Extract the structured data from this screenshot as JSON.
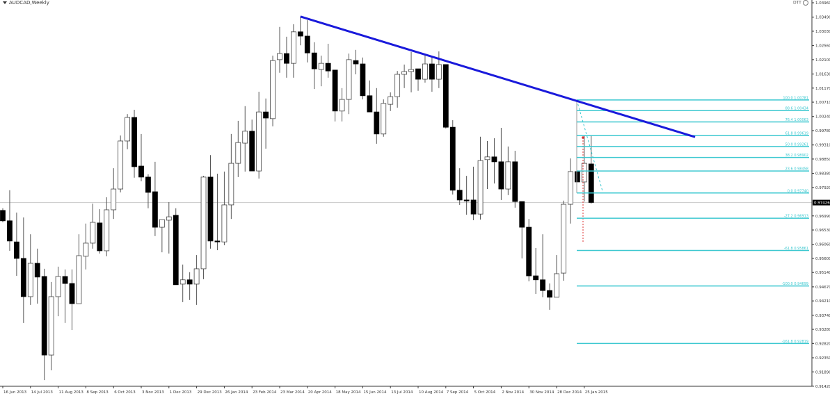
{
  "header": {
    "symbol_title": "AUDCAD,Weekly",
    "indicator_label": "DTT"
  },
  "colors": {
    "bull_body": "#ffffff",
    "bear_body": "#000000",
    "wick": "#555555",
    "trendline": "#1a1adb",
    "fibonacci": "#3cc8d0",
    "price_line": "#c8c8c8"
  },
  "chart_data": {
    "type": "candlestick",
    "title": "AUDCAD,Weekly",
    "timeframe": "Weekly",
    "ylim": [
      0.9142,
      1.0396
    ],
    "grid": false,
    "current_price": "0.97426",
    "y_ticks": [
      "1.03960",
      "1.03490",
      "1.03030",
      "1.02560",
      "1.02100",
      "1.01630",
      "1.01170",
      "1.00710",
      "1.00240",
      "0.99780",
      "0.99310",
      "0.98850",
      "0.98380",
      "0.97920",
      "0.96990",
      "0.96530",
      "0.96060",
      "0.95600",
      "0.95140",
      "0.94670",
      "0.94210",
      "0.93740",
      "0.93280",
      "0.92820",
      "0.92350",
      "0.91890",
      "0.91420"
    ],
    "x_ticks": [
      "16 Jun 2013",
      "14 Jul 2013",
      "11 Aug 2013",
      "8 Sep 2013",
      "6 Oct 2013",
      "3 Nov 2013",
      "1 Dec 2013",
      "29 Dec 2013",
      "26 Jan 2014",
      "23 Feb 2014",
      "23 Mar 2014",
      "20 Apr 2014",
      "18 May 2014",
      "15 Jun 2014",
      "13 Jul 2014",
      "10 Aug 2014",
      "7 Sep 2014",
      "5 Oct 2014",
      "2 Nov 2014",
      "30 Nov 2014",
      "28 Dec 2014",
      "25 Jan 2015"
    ],
    "first_week": "16 Jun 2013",
    "ohlc": [
      [
        0.9717,
        0.9724,
        0.9678,
        0.9683
      ],
      [
        0.9683,
        0.9783,
        0.9585,
        0.9617
      ],
      [
        0.9614,
        0.971,
        0.9503,
        0.956
      ],
      [
        0.956,
        0.9694,
        0.9349,
        0.9435
      ],
      [
        0.9435,
        0.9639,
        0.9408,
        0.9544
      ],
      [
        0.9544,
        0.9592,
        0.9412,
        0.9499
      ],
      [
        0.9501,
        0.9526,
        0.9162,
        0.9244
      ],
      [
        0.9244,
        0.9483,
        0.9194,
        0.9435
      ],
      [
        0.9435,
        0.9533,
        0.9371,
        0.9501
      ],
      [
        0.9501,
        0.9524,
        0.9349,
        0.9478
      ],
      [
        0.9478,
        0.9524,
        0.9326,
        0.9412
      ],
      [
        0.9412,
        0.9639,
        0.9412,
        0.9569
      ],
      [
        0.9567,
        0.9674,
        0.9524,
        0.961
      ],
      [
        0.961,
        0.9739,
        0.9592,
        0.9678
      ],
      [
        0.9676,
        0.9721,
        0.9576,
        0.9585
      ],
      [
        0.9585,
        0.976,
        0.9567,
        0.9719
      ],
      [
        0.9719,
        0.9855,
        0.9689,
        0.9787
      ],
      [
        0.9787,
        0.9962,
        0.9776,
        0.9944
      ],
      [
        0.9944,
        1.0032,
        0.9917,
        1.0021
      ],
      [
        1.0021,
        1.0046,
        0.9824,
        0.986
      ],
      [
        0.9862,
        0.9967,
        0.9812,
        0.9826
      ],
      [
        0.9826,
        0.9835,
        0.9724,
        0.9776
      ],
      [
        0.9778,
        0.9876,
        0.9633,
        0.9662
      ],
      [
        0.9662,
        0.9687,
        0.958,
        0.9687
      ],
      [
        0.9685,
        0.9744,
        0.9576,
        0.9696
      ],
      [
        0.9701,
        0.9724,
        0.9474,
        0.9474
      ],
      [
        0.9476,
        0.954,
        0.9417,
        0.949
      ],
      [
        0.949,
        0.9515,
        0.9424,
        0.9476
      ],
      [
        0.9476,
        0.9571,
        0.9408,
        0.9526
      ],
      [
        0.9526,
        0.983,
        0.9492,
        0.9826
      ],
      [
        0.9826,
        0.9898,
        0.9592,
        0.9617
      ],
      [
        0.9617,
        0.9837,
        0.9587,
        0.9614
      ],
      [
        0.9614,
        0.9844,
        0.9603,
        0.9735
      ],
      [
        0.9735,
        0.9967,
        0.9689,
        0.9871
      ],
      [
        0.9871,
        1.001,
        0.9826,
        0.9939
      ],
      [
        0.9937,
        1.0058,
        0.9844,
        0.9976
      ],
      [
        0.9976,
        1.0014,
        0.9846,
        0.9846
      ],
      [
        0.9846,
        1.0105,
        0.9821,
        1.0039
      ],
      [
        1.0039,
        1.0083,
        0.9919,
        1.0019
      ],
      [
        1.0017,
        1.0223,
        0.9992,
        1.0207
      ],
      [
        1.021,
        1.0317,
        1.0167,
        1.023
      ],
      [
        1.023,
        1.0285,
        1.0151,
        1.0198
      ],
      [
        1.0198,
        1.0326,
        1.0151,
        1.0301
      ],
      [
        1.0301,
        1.0351,
        1.0257,
        1.0287
      ],
      [
        1.0287,
        1.0339,
        1.0201,
        1.0232
      ],
      [
        1.0232,
        1.0267,
        1.0114,
        1.018
      ],
      [
        1.0178,
        1.0223,
        1.0123,
        1.0198
      ],
      [
        1.0198,
        1.0262,
        1.0151,
        1.0173
      ],
      [
        1.0176,
        1.0176,
        1.0008,
        1.0042
      ],
      [
        1.0042,
        1.0117,
        1.0008,
        1.008
      ],
      [
        1.008,
        1.023,
        1.0032,
        1.021
      ],
      [
        1.0207,
        1.0242,
        1.0162,
        1.0196
      ],
      [
        1.0196,
        1.0217,
        1.008,
        1.0092
      ],
      [
        1.0092,
        1.0142,
        1.0039,
        1.0039
      ],
      [
        1.0039,
        1.0117,
        0.9935,
        0.9967
      ],
      [
        0.9967,
        1.008,
        0.9958,
        1.0067
      ],
      [
        1.0064,
        1.0103,
        1.0042,
        1.0089
      ],
      [
        1.0089,
        1.0173,
        1.0053,
        1.0162
      ],
      [
        1.0162,
        1.0194,
        1.0117,
        1.0171
      ],
      [
        1.0171,
        1.0235,
        1.0103,
        1.0178
      ],
      [
        1.018,
        1.018,
        1.0108,
        1.0146
      ],
      [
        1.0146,
        1.0223,
        1.0135,
        1.0196
      ],
      [
        1.0196,
        1.0219,
        1.0105,
        1.0146
      ],
      [
        1.0146,
        1.0237,
        1.0117,
        1.0194
      ],
      [
        1.0194,
        1.0194,
        0.9985,
        0.9989
      ],
      [
        0.9989,
        1.0012,
        0.9769,
        0.9783
      ],
      [
        0.9783,
        0.9855,
        0.9735,
        0.9751
      ],
      [
        0.9751,
        0.983,
        0.9703,
        0.9748
      ],
      [
        0.9751,
        0.986,
        0.9685,
        0.9705
      ],
      [
        0.9705,
        0.9958,
        0.9687,
        0.988
      ],
      [
        0.9883,
        0.9944,
        0.9787,
        0.9892
      ],
      [
        0.9892,
        0.9953,
        0.9805,
        0.9876
      ],
      [
        0.9876,
        0.9987,
        0.9751,
        0.9787
      ],
      [
        0.9787,
        0.9926,
        0.9767,
        0.9876
      ],
      [
        0.9876,
        0.9912,
        0.9726,
        0.9746
      ],
      [
        0.9746,
        0.9746,
        0.956,
        0.9662
      ],
      [
        0.9662,
        0.9689,
        0.9485,
        0.9503
      ],
      [
        0.9503,
        0.9594,
        0.9444,
        0.949
      ],
      [
        0.949,
        0.9639,
        0.9433,
        0.9455
      ],
      [
        0.9455,
        0.9478,
        0.9392,
        0.9433
      ],
      [
        0.9433,
        0.9571,
        0.9433,
        0.951
      ],
      [
        0.9512,
        0.9749,
        0.9487,
        0.9737
      ],
      [
        0.9737,
        0.9887,
        0.9674,
        0.9844
      ],
      [
        0.9844,
        0.9844,
        0.981,
        0.981
      ],
      [
        0.981,
        0.9961,
        0.9746,
        0.9871
      ],
      [
        0.9869,
        0.9961,
        0.9739,
        0.9743
      ]
    ],
    "trendline": {
      "from": {
        "week": "13 Apr 2014",
        "price": 1.0351
      },
      "to": {
        "week": "17 May 2015",
        "price": 0.9957
      }
    },
    "fibonacci_levels": [
      {
        "label": "100.0 1.00781",
        "price": 1.00781
      },
      {
        "label": "88.6 1.00434",
        "price": 1.00434
      },
      {
        "label": "76.4 1.00063",
        "price": 1.00063
      },
      {
        "label": "61.8 0.99619",
        "price": 0.99619
      },
      {
        "label": "50.0 0.99261",
        "price": 0.99261
      },
      {
        "label": "38.2 0.98902",
        "price": 0.98902
      },
      {
        "label": "23.6 0.98458",
        "price": 0.98458
      },
      {
        "label": "0.0 0.97740",
        "price": 0.9774
      },
      {
        "label": "-27.2 0.96913",
        "price": 0.96913
      },
      {
        "label": "-61.8 0.95861",
        "price": 0.95861
      },
      {
        "label": "-100.0 0.94699",
        "price": 0.94699
      },
      {
        "label": "-161.8 0.92819",
        "price": 0.92819
      }
    ]
  }
}
